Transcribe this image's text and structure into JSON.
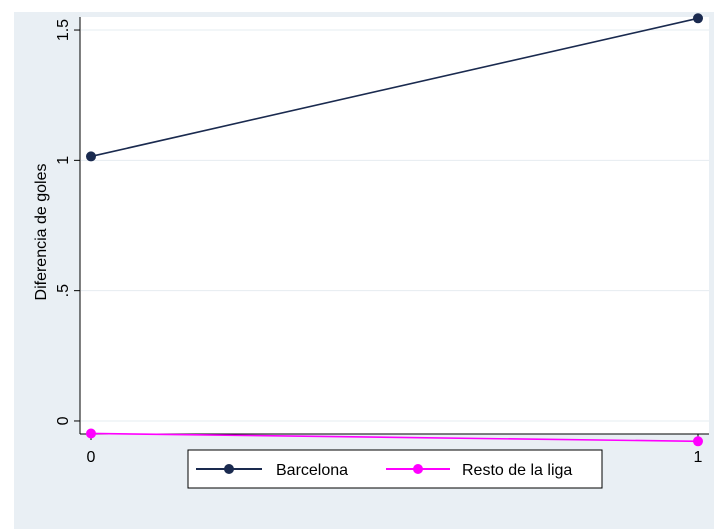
{
  "chart_data": {
    "type": "line",
    "x": [
      0,
      1
    ],
    "xlim": [
      0,
      1
    ],
    "ylim": [
      -0.05,
      1.55
    ],
    "xticks": [
      0,
      1
    ],
    "xtick_labels": [
      "0",
      "1"
    ],
    "yticks": [
      0,
      0.5,
      1,
      1.5
    ],
    "ytick_labels": [
      "0",
      ".5",
      "1",
      "1.5"
    ],
    "xlabel": "",
    "ylabel": "Diferencia de goles",
    "grid": true,
    "legend_placement": "bottom",
    "series": [
      {
        "name": "Barcelona",
        "values": [
          1.015,
          1.545
        ],
        "color": "#1a2a4f"
      },
      {
        "name": "Resto de la liga",
        "values": [
          -0.048,
          -0.078
        ],
        "color": "#ff00ff"
      }
    ]
  },
  "colors": {
    "background": "#e9eff4",
    "plot_area": "#ffffff",
    "grid": "#e6ecf1"
  }
}
